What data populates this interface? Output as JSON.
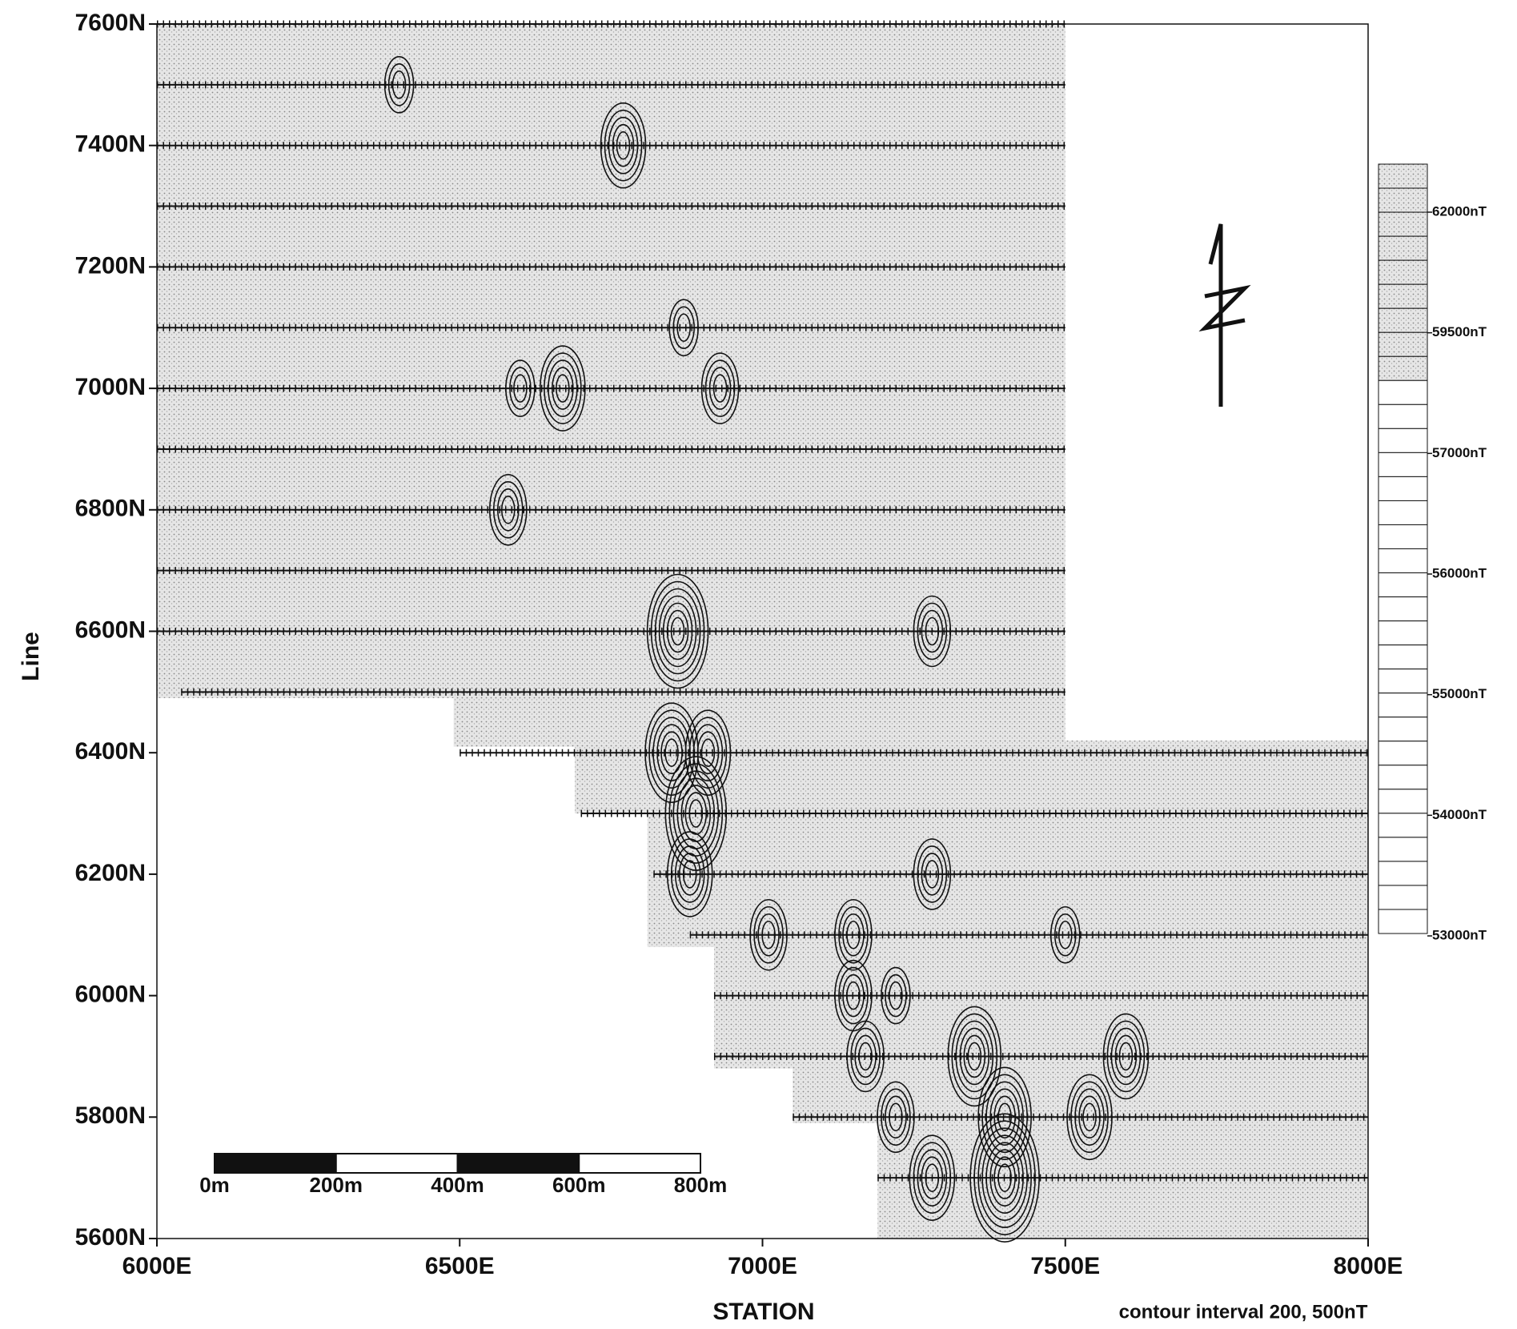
{
  "chart_data": {
    "type": "contour",
    "xlabel": "STATION",
    "ylabel": "Line",
    "note": "contour interval 200, 500nT",
    "xlim": [
      6000,
      8000
    ],
    "ylim": [
      5600,
      7600
    ],
    "xticks": [
      {
        "value": 6000,
        "label": "6000E"
      },
      {
        "value": 6500,
        "label": "6500E"
      },
      {
        "value": 7000,
        "label": "7000E"
      },
      {
        "value": 7500,
        "label": "7500E"
      },
      {
        "value": 8000,
        "label": "8000E"
      }
    ],
    "yticks": [
      {
        "value": 5600,
        "label": "5600N"
      },
      {
        "value": 5800,
        "label": "5800N"
      },
      {
        "value": 6000,
        "label": "6000N"
      },
      {
        "value": 6200,
        "label": "6200N"
      },
      {
        "value": 6400,
        "label": "6400N"
      },
      {
        "value": 6600,
        "label": "6600N"
      },
      {
        "value": 6800,
        "label": "6800N"
      },
      {
        "value": 7000,
        "label": "7000N"
      },
      {
        "value": 7200,
        "label": "7200N"
      },
      {
        "value": 7400,
        "label": "7400N"
      },
      {
        "value": 7600,
        "label": "7600N"
      }
    ],
    "colorbar_ticks": [
      {
        "value": 62000,
        "label": "62000nT"
      },
      {
        "value": 59500,
        "label": "59500nT"
      },
      {
        "value": 57000,
        "label": "57000nT"
      },
      {
        "value": 56000,
        "label": "56000nT"
      },
      {
        "value": 55000,
        "label": "55000nT"
      },
      {
        "value": 54000,
        "label": "54000nT"
      },
      {
        "value": 53000,
        "label": "53000nT"
      }
    ],
    "scale_bar": [
      {
        "value": 0,
        "label": "0m"
      },
      {
        "value": 200,
        "label": "200m"
      },
      {
        "value": 400,
        "label": "400m"
      },
      {
        "value": 600,
        "label": "600m"
      },
      {
        "value": 800,
        "label": "800m"
      }
    ],
    "survey_area": [
      [
        6000,
        7600
      ],
      [
        7500,
        7600
      ],
      [
        7500,
        6500
      ],
      [
        7500,
        6420
      ],
      [
        8000,
        6420
      ],
      [
        8000,
        5600
      ],
      [
        7190,
        5600
      ],
      [
        7190,
        5790
      ],
      [
        7050,
        5790
      ],
      [
        7050,
        5880
      ],
      [
        6920,
        5880
      ],
      [
        6920,
        6080
      ],
      [
        6810,
        6080
      ],
      [
        6810,
        6300
      ],
      [
        6690,
        6300
      ],
      [
        6690,
        6410
      ],
      [
        6490,
        6410
      ],
      [
        6490,
        6490
      ],
      [
        6000,
        6490
      ]
    ],
    "survey_lines": [
      {
        "line": 7600,
        "from": 6000,
        "to": 7500
      },
      {
        "line": 7500,
        "from": 6000,
        "to": 7500
      },
      {
        "line": 7400,
        "from": 6000,
        "to": 7500
      },
      {
        "line": 7300,
        "from": 6000,
        "to": 7500
      },
      {
        "line": 7200,
        "from": 6000,
        "to": 7500
      },
      {
        "line": 7100,
        "from": 6000,
        "to": 7500
      },
      {
        "line": 7000,
        "from": 6000,
        "to": 7500
      },
      {
        "line": 6900,
        "from": 6000,
        "to": 7500
      },
      {
        "line": 6800,
        "from": 6000,
        "to": 7500
      },
      {
        "line": 6700,
        "from": 6000,
        "to": 7500
      },
      {
        "line": 6600,
        "from": 6000,
        "to": 7500
      },
      {
        "line": 6500,
        "from": 6040,
        "to": 7500
      },
      {
        "line": 6400,
        "from": 6500,
        "to": 8000
      },
      {
        "line": 6300,
        "from": 6700,
        "to": 8000
      },
      {
        "line": 6200,
        "from": 6820,
        "to": 8000
      },
      {
        "line": 6100,
        "from": 6880,
        "to": 8000
      },
      {
        "line": 6000,
        "from": 6920,
        "to": 8000
      },
      {
        "line": 5900,
        "from": 6920,
        "to": 8000
      },
      {
        "line": 5800,
        "from": 7050,
        "to": 8000
      },
      {
        "line": 5700,
        "from": 7190,
        "to": 8000
      }
    ],
    "anomalies": [
      {
        "E": 6400,
        "N": 7500,
        "rings": 3
      },
      {
        "E": 6770,
        "N": 7400,
        "rings": 5
      },
      {
        "E": 6870,
        "N": 7100,
        "rings": 3
      },
      {
        "E": 6670,
        "N": 7000,
        "rings": 5
      },
      {
        "E": 6930,
        "N": 7000,
        "rings": 4
      },
      {
        "E": 6580,
        "N": 6800,
        "rings": 4
      },
      {
        "E": 6860,
        "N": 6600,
        "rings": 7
      },
      {
        "E": 6850,
        "N": 6400,
        "rings": 6
      },
      {
        "E": 6910,
        "N": 6400,
        "rings": 5
      },
      {
        "E": 6890,
        "N": 6300,
        "rings": 7
      },
      {
        "E": 6880,
        "N": 6200,
        "rings": 5
      },
      {
        "E": 7280,
        "N": 6200,
        "rings": 4
      },
      {
        "E": 7010,
        "N": 6100,
        "rings": 4
      },
      {
        "E": 7150,
        "N": 6100,
        "rings": 4
      },
      {
        "E": 7500,
        "N": 6100,
        "rings": 3
      },
      {
        "E": 7150,
        "N": 6000,
        "rings": 4
      },
      {
        "E": 7220,
        "N": 6000,
        "rings": 3
      },
      {
        "E": 7170,
        "N": 5900,
        "rings": 4
      },
      {
        "E": 7350,
        "N": 5900,
        "rings": 6
      },
      {
        "E": 7600,
        "N": 5900,
        "rings": 5
      },
      {
        "E": 7220,
        "N": 5800,
        "rings": 4
      },
      {
        "E": 7400,
        "N": 5800,
        "rings": 6
      },
      {
        "E": 7540,
        "N": 5800,
        "rings": 5
      },
      {
        "E": 7280,
        "N": 5700,
        "rings": 5
      },
      {
        "E": 7400,
        "N": 5700,
        "rings": 8
      },
      {
        "E": 7280,
        "N": 6600,
        "rings": 4
      },
      {
        "E": 6600,
        "N": 7000,
        "rings": 3
      }
    ]
  }
}
